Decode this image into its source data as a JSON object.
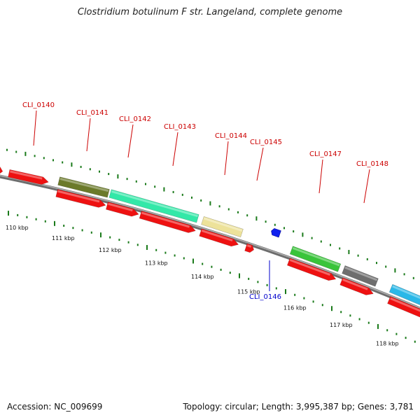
{
  "title": "Clostridium botulinum F str. Langeland, complete genome",
  "footer": {
    "accession": "Accession: NC_009699",
    "summary": "Topology: circular; Length: 3,995,387 bp; Genes: 3,781"
  },
  "colors": {
    "backbone": "#808080",
    "tick_marks": "#1a7a1a",
    "forward_label": "#cc0000",
    "reverse_label": "#0000cc",
    "cds": "#ee1111"
  },
  "ticks": {
    "unit": "kbp",
    "labels": [
      "110 kbp",
      "111 kbp",
      "112 kbp",
      "113 kbp",
      "114 kbp",
      "115 kbp",
      "116 kbp",
      "117 kbp",
      "118 kbp"
    ]
  },
  "gene_labels": [
    {
      "text": "CLI_0140",
      "strand": "forward"
    },
    {
      "text": "CLI_0141",
      "strand": "forward"
    },
    {
      "text": "CLI_0142",
      "strand": "forward"
    },
    {
      "text": "CLI_0143",
      "strand": "forward"
    },
    {
      "text": "CLI_0144",
      "strand": "forward"
    },
    {
      "text": "CLI_0145",
      "strand": "forward"
    },
    {
      "text": "CLI_0146",
      "strand": "reverse"
    },
    {
      "text": "CLI_0147",
      "strand": "forward"
    },
    {
      "text": "CLI_0148",
      "strand": "forward"
    }
  ],
  "feature_colors": {
    "CLI_0141": "#6b7a2a",
    "CLI_0142": "#33e8a8",
    "CLI_0144": "#ede29a",
    "CLI_0147": "#39c43a",
    "CLI_0148": "#6e6e6e",
    "next": "#2ab8e8"
  }
}
